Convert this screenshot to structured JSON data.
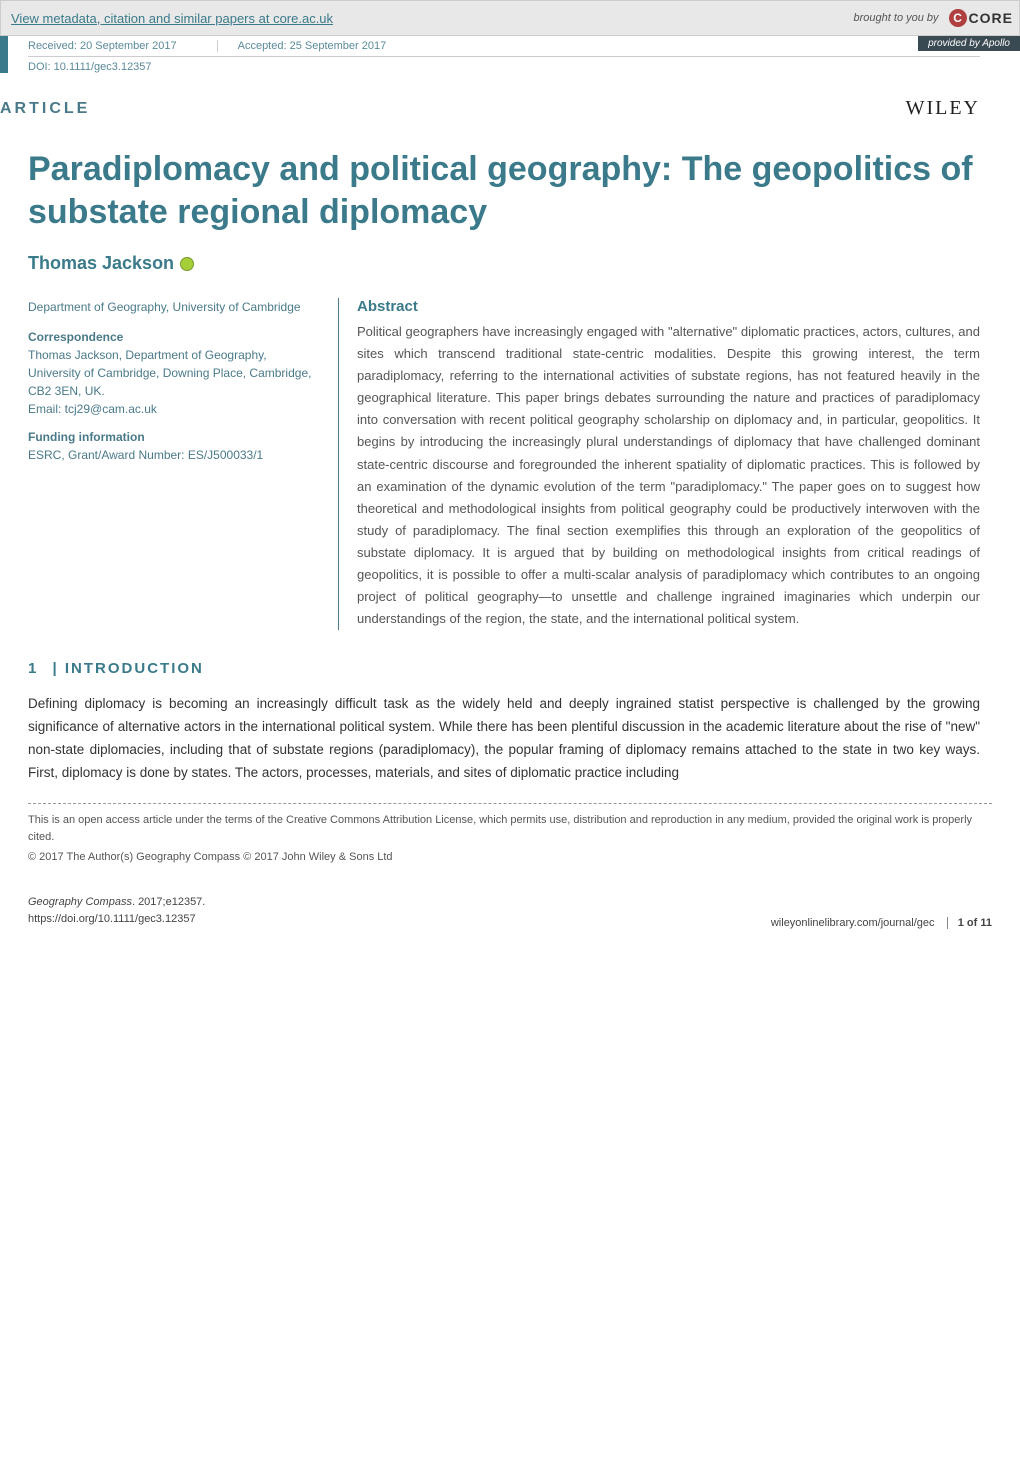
{
  "banner": {
    "left_link": "View metadata, citation and similar papers at core.ac.uk",
    "brought": "brought to you by",
    "core": "CORE",
    "apollo_prefix": "provided by ",
    "apollo": "Apollo"
  },
  "header": {
    "received": "Received: 20 September 2017",
    "accepted": "Accepted: 25 September 2017",
    "doi": "DOI: 10.1111/gec3.12357",
    "article_label": "ARTICLE",
    "wiley": "WILEY"
  },
  "title": "Paradiplomacy and political geography: The geopolitics of substate regional diplomacy",
  "author": "Thomas Jackson",
  "affiliation": {
    "dept": "Department of Geography, University of Cambridge",
    "corr_head": "Correspondence",
    "corr_body": "Thomas Jackson, Department of Geography, University of Cambridge, Downing Place, Cambridge, CB2 3EN, UK.",
    "email": "Email: tcj29@cam.ac.uk",
    "fund_head": "Funding information",
    "fund_body": "ESRC, Grant/Award Number: ES/J500033/1"
  },
  "abstract": {
    "head": "Abstract",
    "text": "Political geographers have increasingly engaged with \"alternative\" diplomatic practices, actors, cultures, and sites which transcend traditional state-centric modalities. Despite this growing interest, the term paradiplomacy, referring to the international activities of substate regions, has not featured heavily in the geographical literature. This paper brings debates surrounding the nature and practices of paradiplomacy into conversation with recent political geography scholarship on diplomacy and, in particular, geopolitics. It begins by introducing the increasingly plural understandings of diplomacy that have challenged dominant state-centric discourse and foregrounded the inherent spatiality of diplomatic practices. This is followed by an examination of the dynamic evolution of the term \"paradiplomacy.\" The paper goes on to suggest how theoretical and methodological insights from political geography could be productively interwoven with the study of paradiplomacy. The final section exemplifies this through an exploration of the geopolitics of substate diplomacy. It is argued that by building on methodological insights from critical readings of geopolitics, it is possible to offer a multi-scalar analysis of paradiplomacy which contributes to an ongoing project of political geography—to unsettle and challenge ingrained imaginaries which underpin our understandings of the region, the state, and the international political system."
  },
  "section": {
    "num": "1",
    "sep": " | ",
    "head": "INTRODUCTION",
    "p1": "Defining diplomacy is becoming an increasingly difficult task as the widely held and deeply ingrained statist perspective is challenged by the growing significance of alternative actors in the international political system. While there has been plentiful discussion in the academic literature about the rise of \"new\" non-state diplomacies, including that of substate regions (paradiplomacy), the popular framing of diplomacy remains attached to the state in two key ways. First, diplomacy is done by states. The actors, processes, materials, and sites of diplomatic practice including"
  },
  "license": {
    "l1": "This is an open access article under the terms of the Creative Commons Attribution License, which permits use, distribution and reproduction in any medium, provided the original work is properly cited.",
    "l2": "© 2017 The Author(s) Geography Compass © 2017 John Wiley & Sons Ltd"
  },
  "footer": {
    "journal": "Geography Compass",
    "citation": ". 2017;e12357.",
    "doi_url": "https://doi.org/10.1111/gec3.12357",
    "online": "wileyonlinelibrary.com/journal/gec",
    "page": "1 of 11"
  },
  "colors": {
    "accent": "#3a7a8a",
    "banner_bg": "#e8e8e8",
    "apollo_bg": "#3a4a52",
    "core_red": "#b04040",
    "orcid": "#a6ce39",
    "text": "#333333",
    "muted": "#555555"
  }
}
